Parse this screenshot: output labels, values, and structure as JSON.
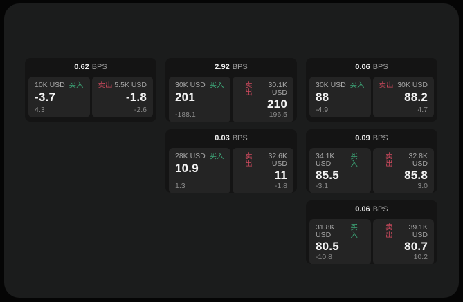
{
  "labels": {
    "bps_unit": "BPS",
    "buy": "买入",
    "sell": "卖出"
  },
  "colors": {
    "buy_green": "#3da778",
    "sell_red": "#cf4a5e",
    "panel_background": "#1b1c1c",
    "card_background": "#141414",
    "tile_background": "#242424"
  },
  "cards": [
    {
      "bps": "0.62",
      "buy": {
        "amount": "10K USD",
        "price": "-3.7",
        "change": "4.3"
      },
      "sell": {
        "amount": "5.5K USD",
        "price": "-1.8",
        "change": "-2.6"
      }
    },
    {
      "bps": "2.92",
      "buy": {
        "amount": "30K USD",
        "price": "201",
        "change": "-188.1"
      },
      "sell": {
        "amount": "30.1K USD",
        "price": "210",
        "change": "196.5"
      }
    },
    {
      "bps": "0.06",
      "buy": {
        "amount": "30K USD",
        "price": "88",
        "change": "-4.9"
      },
      "sell": {
        "amount": "30K USD",
        "price": "88.2",
        "change": "4.7"
      }
    },
    {
      "bps": "0.03",
      "buy": {
        "amount": "28K USD",
        "price": "10.9",
        "change": "1.3"
      },
      "sell": {
        "amount": "32.6K USD",
        "price": "11",
        "change": "-1.8"
      }
    },
    {
      "bps": "0.09",
      "buy": {
        "amount": "34.1K USD",
        "price": "85.5",
        "change": "-3.1"
      },
      "sell": {
        "amount": "32.8K USD",
        "price": "85.8",
        "change": "3.0"
      }
    },
    {
      "bps": "0.06",
      "buy": {
        "amount": "31.8K USD",
        "price": "80.5",
        "change": "-10.8"
      },
      "sell": {
        "amount": "39.1K USD",
        "price": "80.7",
        "change": "10.2"
      }
    }
  ]
}
